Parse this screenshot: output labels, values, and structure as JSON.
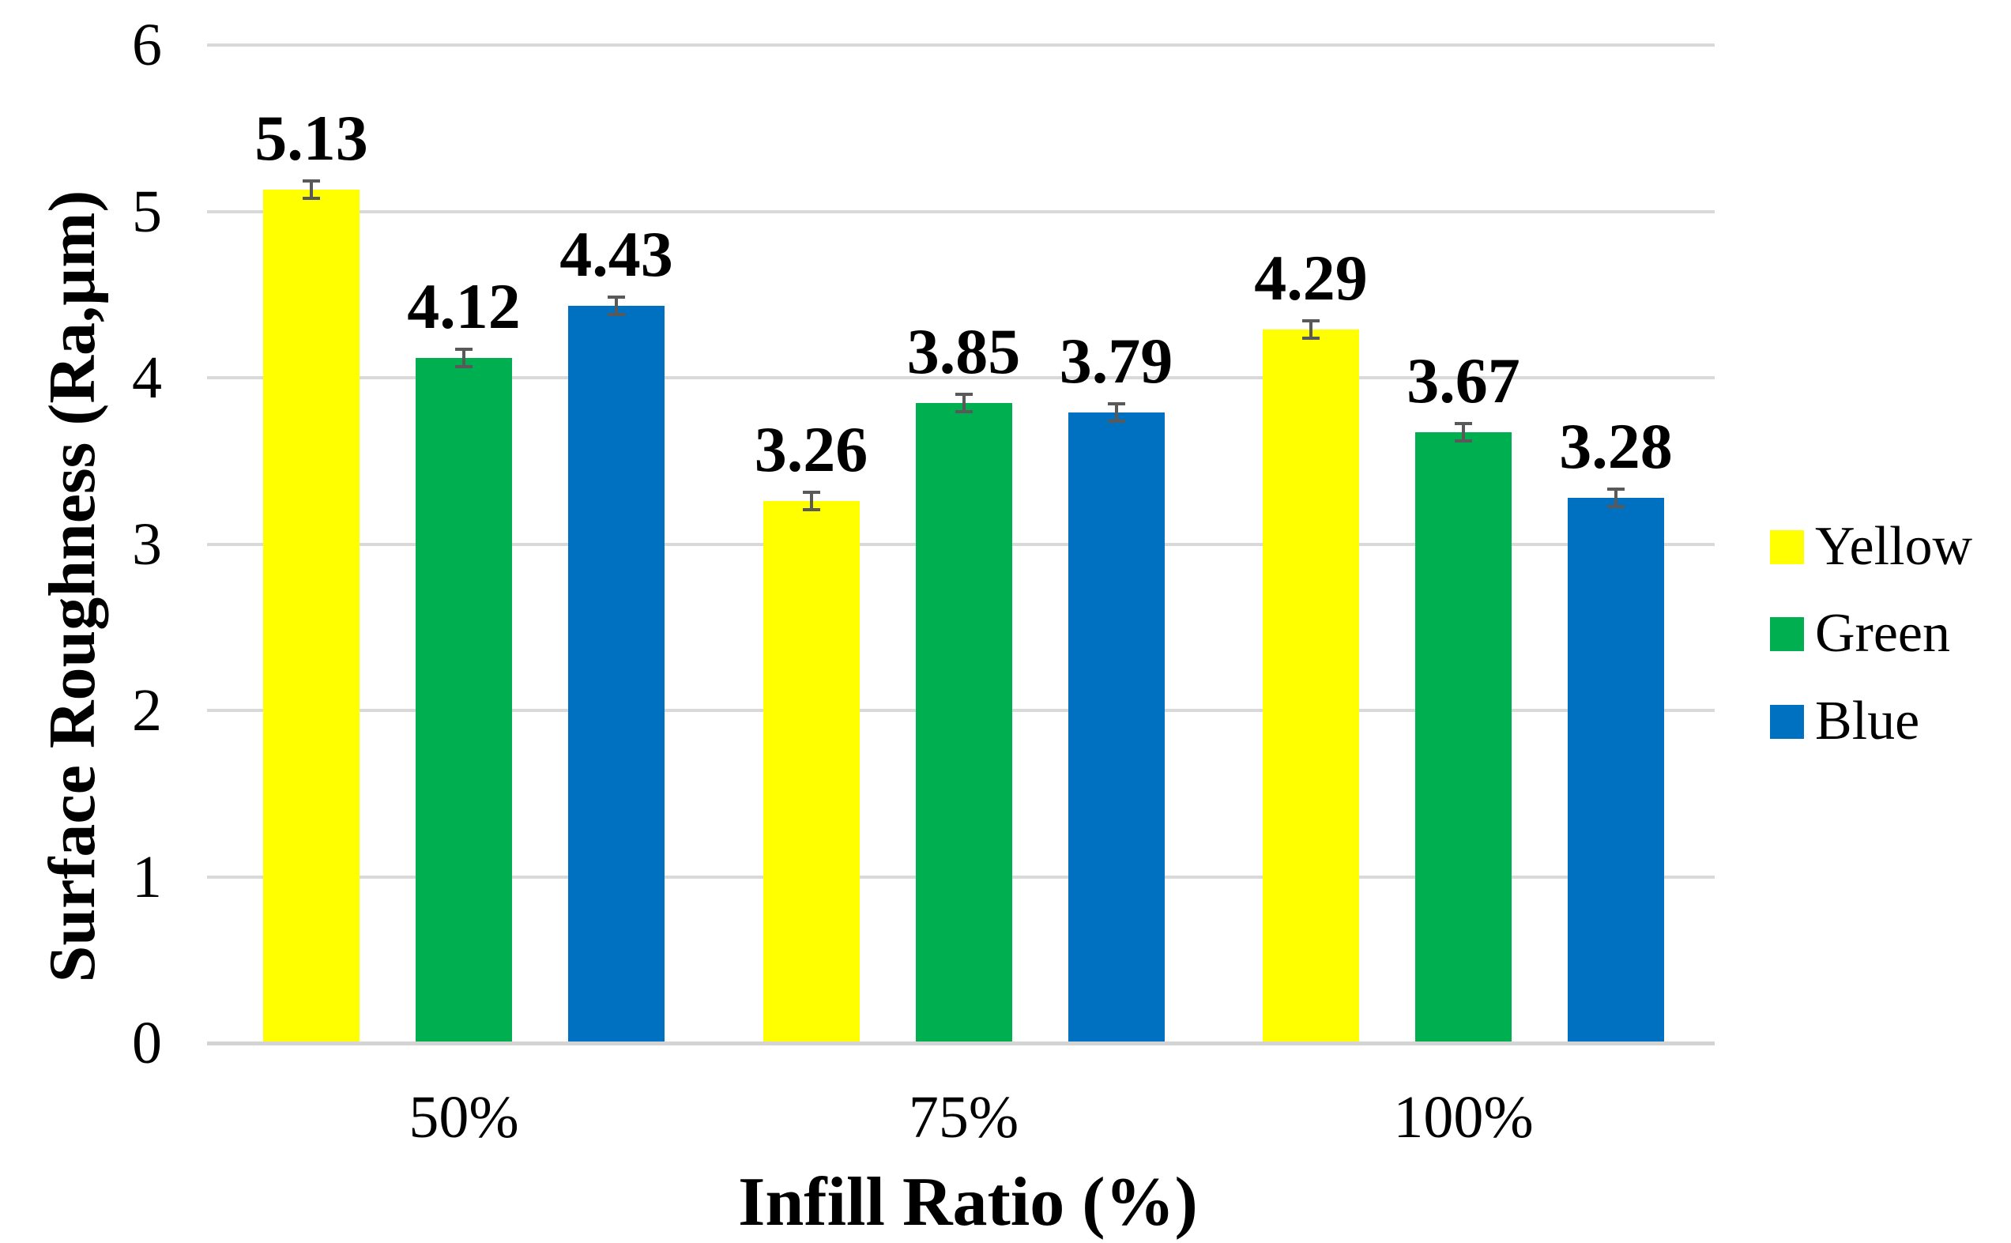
{
  "chart_data": {
    "type": "bar",
    "title": "",
    "xlabel": "Infill Ratio (%)",
    "ylabel": "Surface Roughness (Ra,µm)",
    "categories": [
      "50%",
      "75%",
      "100%"
    ],
    "series": [
      {
        "name": "Yellow",
        "color": "#FFFF00",
        "values": [
          5.13,
          3.26,
          4.29
        ]
      },
      {
        "name": "Green",
        "color": "#00B050",
        "values": [
          4.12,
          3.85,
          3.67
        ]
      },
      {
        "name": "Blue",
        "color": "#0070C0",
        "values": [
          4.43,
          3.79,
          3.28
        ]
      }
    ],
    "data_labels": [
      [
        "5.13",
        "3.26",
        "4.29"
      ],
      [
        "4.12",
        "3.85",
        "3.67"
      ],
      [
        "4.43",
        "3.79",
        "3.28"
      ]
    ],
    "error_bar_estimate": 0.05,
    "ylim": [
      0,
      6
    ],
    "yticks": [
      0,
      1,
      2,
      3,
      4,
      5,
      6
    ],
    "grid": true,
    "legend_position": "right",
    "colors": {
      "gridline": "#d9d9d9",
      "error_bar": "#595959",
      "text": "#000000",
      "background": "#ffffff"
    }
  }
}
